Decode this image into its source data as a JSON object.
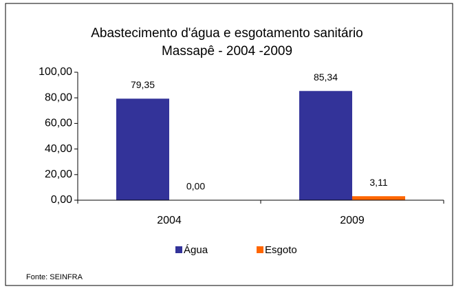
{
  "chart_data": {
    "type": "bar",
    "title": "Abastecimento d'água e esgotamento sanitário",
    "subtitle": "Massapê - 2004 -2009",
    "categories": [
      "2004",
      "2009"
    ],
    "series": [
      {
        "name": "Água",
        "color": "#333399",
        "values": [
          79.35,
          85.34
        ],
        "value_labels": [
          "79,35",
          "85,34"
        ]
      },
      {
        "name": "Esgoto",
        "color": "#ff6600",
        "values": [
          0,
          3.11
        ],
        "value_labels": [
          "0,00",
          "3,11"
        ]
      }
    ],
    "ylim": [
      0,
      100
    ],
    "yticks": [
      {
        "value": 0,
        "label": "0,00"
      },
      {
        "value": 20,
        "label": "20,00"
      },
      {
        "value": 40,
        "label": "40,00"
      },
      {
        "value": 60,
        "label": "60,00"
      },
      {
        "value": 80,
        "label": "80,00"
      },
      {
        "value": 100,
        "label": "100,00"
      }
    ],
    "grid": false,
    "legend": "bottom",
    "source": "Fonte: SEINFRA"
  }
}
